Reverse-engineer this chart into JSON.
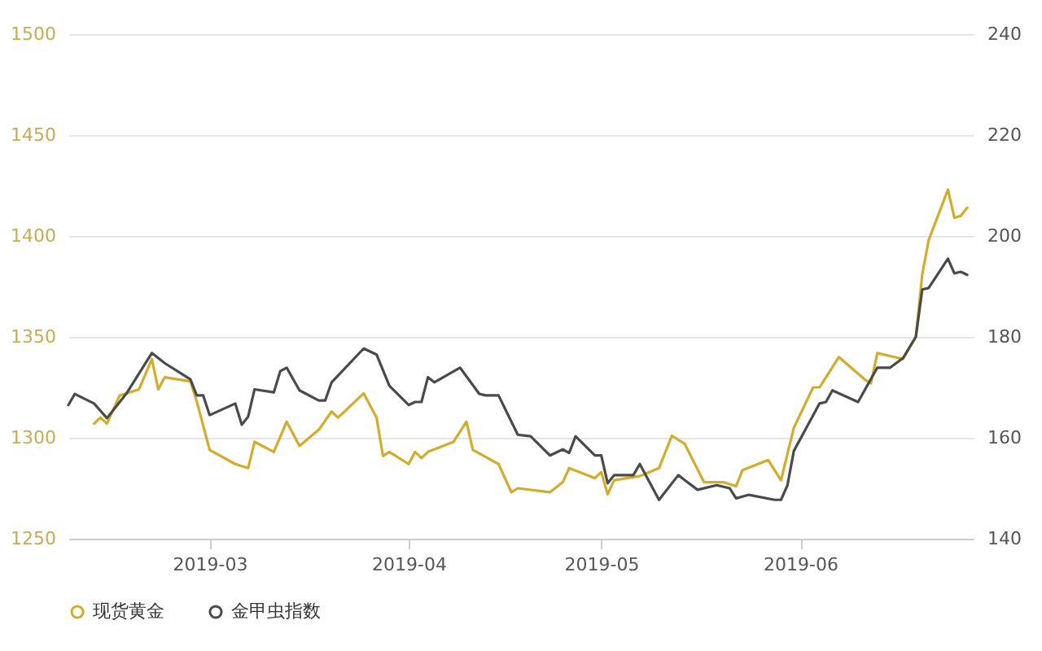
{
  "chart_data": {
    "type": "line",
    "xlim": [
      "2019-02-07",
      "2019-06-28"
    ],
    "xticks": [
      {
        "value": "2019-03-01",
        "label": "2019-03"
      },
      {
        "value": "2019-04-01",
        "label": "2019-04"
      },
      {
        "value": "2019-05-01",
        "label": "2019-05"
      },
      {
        "value": "2019-06-01",
        "label": "2019-06"
      }
    ],
    "ylim": [
      1250,
      1500
    ],
    "yticks": [
      1250,
      1300,
      1350,
      1400,
      1450,
      1500
    ],
    "y2lim": [
      140,
      240
    ],
    "y2ticks": [
      140,
      160,
      180,
      200,
      220,
      240
    ],
    "grid": "y",
    "legend": "bottom",
    "series": [
      {
        "name": "现货黄金",
        "color": "#d4ac2c",
        "x": [
          "2019-02-11",
          "2019-02-12",
          "2019-02-13",
          "2019-02-15",
          "2019-02-18",
          "2019-02-20",
          "2019-02-21",
          "2019-02-22",
          "2019-02-26",
          "2019-02-27",
          "2019-03-01",
          "2019-03-05",
          "2019-03-07",
          "2019-03-08",
          "2019-03-11",
          "2019-03-13",
          "2019-03-15",
          "2019-03-18",
          "2019-03-20",
          "2019-03-21",
          "2019-03-25",
          "2019-03-27",
          "2019-03-28",
          "2019-03-29",
          "2019-04-01",
          "2019-04-02",
          "2019-04-03",
          "2019-04-04",
          "2019-04-08",
          "2019-04-10",
          "2019-04-11",
          "2019-04-15",
          "2019-04-17",
          "2019-04-18",
          "2019-04-23",
          "2019-04-25",
          "2019-04-26",
          "2019-04-30",
          "2019-05-01",
          "2019-05-02",
          "2019-05-03",
          "2019-05-07",
          "2019-05-10",
          "2019-05-12",
          "2019-05-14",
          "2019-05-17",
          "2019-05-20",
          "2019-05-22",
          "2019-05-23",
          "2019-05-27",
          "2019-05-29",
          "2019-05-31",
          "2019-06-03",
          "2019-06-04",
          "2019-06-07",
          "2019-06-11",
          "2019-06-12",
          "2019-06-13",
          "2019-06-17",
          "2019-06-19",
          "2019-06-20",
          "2019-06-21",
          "2019-06-24",
          "2019-06-25",
          "2019-06-26",
          "2019-06-27"
        ],
        "values": [
          1307,
          1310,
          1307,
          1321,
          1324,
          1339,
          1324,
          1330,
          1328,
          1318,
          1294,
          1287,
          1285,
          1298,
          1293,
          1308,
          1296,
          1304,
          1313,
          1310,
          1322,
          1310,
          1291,
          1293,
          1287,
          1293,
          1290,
          1293,
          1298,
          1308,
          1294,
          1287,
          1273,
          1275,
          1273,
          1278,
          1285,
          1280,
          1283,
          1272,
          1279,
          1281,
          1285,
          1301,
          1297,
          1278,
          1278,
          1276,
          1284,
          1289,
          1279,
          1305,
          1325,
          1325,
          1340,
          1329,
          1327,
          1342,
          1339,
          1350,
          1381,
          1398,
          1423,
          1409,
          1410,
          1414
        ]
      },
      {
        "name": "金甲虫指数",
        "color": "#4a4a4a",
        "axis": "y2",
        "x": [
          "2019-02-07",
          "2019-02-08",
          "2019-02-11",
          "2019-02-13",
          "2019-02-16",
          "2019-02-20",
          "2019-02-22",
          "2019-02-26",
          "2019-02-27",
          "2019-02-28",
          "2019-03-01",
          "2019-03-05",
          "2019-03-06",
          "2019-03-07",
          "2019-03-08",
          "2019-03-11",
          "2019-03-12",
          "2019-03-13",
          "2019-03-15",
          "2019-03-18",
          "2019-03-19",
          "2019-03-20",
          "2019-03-25",
          "2019-03-27",
          "2019-03-29",
          "2019-04-01",
          "2019-04-02",
          "2019-04-03",
          "2019-04-04",
          "2019-04-05",
          "2019-04-09",
          "2019-04-12",
          "2019-04-13",
          "2019-04-15",
          "2019-04-18",
          "2019-04-20",
          "2019-04-23",
          "2019-04-25",
          "2019-04-26",
          "2019-04-27",
          "2019-04-30",
          "2019-05-01",
          "2019-05-02",
          "2019-05-03",
          "2019-05-06",
          "2019-05-07",
          "2019-05-10",
          "2019-05-13",
          "2019-05-14",
          "2019-05-16",
          "2019-05-19",
          "2019-05-21",
          "2019-05-22",
          "2019-05-24",
          "2019-05-28",
          "2019-05-29",
          "2019-05-30",
          "2019-05-31",
          "2019-06-04",
          "2019-06-05",
          "2019-06-06",
          "2019-06-10",
          "2019-06-13",
          "2019-06-15",
          "2019-06-17",
          "2019-06-19",
          "2019-06-20",
          "2019-06-21",
          "2019-06-24",
          "2019-06-25",
          "2019-06-26",
          "2019-06-27"
        ],
        "values": [
          166.5,
          168.7,
          166.8,
          163.9,
          168.7,
          176.8,
          174.8,
          171.6,
          168.4,
          168.4,
          164.5,
          166.8,
          162.6,
          164.2,
          169.6,
          169,
          173.2,
          173.9,
          169.4,
          167.4,
          167.4,
          171,
          177.7,
          176.5,
          170.3,
          166.5,
          167.1,
          167.1,
          172,
          171,
          173.9,
          168.7,
          168.4,
          168.4,
          160.6,
          160.3,
          156.5,
          157.7,
          157,
          160.3,
          156.5,
          156.5,
          151,
          152.6,
          152.6,
          154.8,
          147.7,
          152.6,
          151.6,
          149.7,
          150.6,
          150,
          148,
          148.7,
          147.7,
          147.7,
          150.6,
          157.4,
          166.8,
          167.1,
          169.4,
          167.1,
          173.9,
          173.9,
          175.8,
          180,
          189.4,
          189.7,
          195.5,
          192.6,
          192.9,
          192.3
        ]
      }
    ]
  }
}
